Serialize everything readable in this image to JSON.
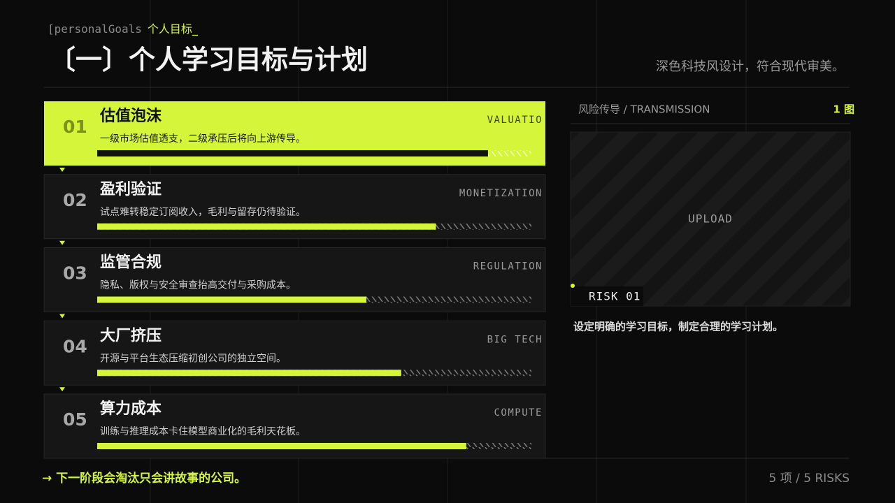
{
  "header": {
    "tag": "[personalGoals",
    "tag_highlight": "个人目标_",
    "title": "〔一〕个人学习目标与计划",
    "subtitle": "深色科技风设计，符合现代审美。"
  },
  "items": [
    {
      "number": "01",
      "title": "估值泡沫",
      "description": "一级市场估值透支，二级承压后将向上游传导。",
      "tag": "VALUATIO",
      "progress": 0.9
    },
    {
      "number": "02",
      "title": "盈利验证",
      "description": "试点难转稳定订阅收入，毛利与留存仍待验证。",
      "tag": "MONETIZATION",
      "progress": 0.78
    },
    {
      "number": "03",
      "title": "监管合规",
      "description": "隐私、版权与安全审查抬高交付与采购成本。",
      "tag": "REGULATION",
      "progress": 0.62
    },
    {
      "number": "04",
      "title": "大厂挤压",
      "description": "开源与平台生态压缩初创公司的独立空间。",
      "tag": "BIG TECH",
      "progress": 0.7
    },
    {
      "number": "05",
      "title": "算力成本",
      "description": "训练与推理成本卡住模型商业化的毛利天花板。",
      "tag": "COMPUTE",
      "progress": 0.85
    }
  ],
  "panel": {
    "label": "风险传导 / TRANSMISSION",
    "count": "1 图",
    "placeholder": "UPLOAD",
    "badge": "RISK 01",
    "caption": "设定明确的学习目标，制定合理的学习计划。"
  },
  "footer": {
    "note": "→ 下一阶段会淘汰只会讲故事的公司。",
    "summary": "5 项 / 5 RISKS"
  }
}
